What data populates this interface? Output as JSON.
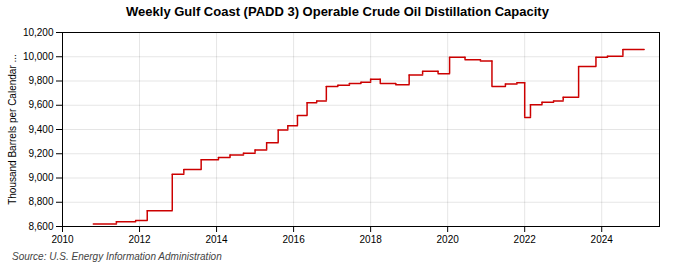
{
  "chart_data": {
    "type": "line",
    "title": "Weekly Gulf Coast (PADD 3) Operable Crude Oil Distillation Capacity",
    "ylabel": "Thousand Barrels per Calendar ...",
    "source": "Source: U.S. Energy Information Administration",
    "color": "#cc0000",
    "grid": true,
    "xlim": [
      2010.0,
      2025.5
    ],
    "xticks": [
      2010,
      2012,
      2014,
      2016,
      2018,
      2020,
      2022,
      2024
    ],
    "ylim": [
      8600,
      10200
    ],
    "yticks": [
      {
        "value": 8600,
        "label": "8,600"
      },
      {
        "value": 8800,
        "label": "8,800"
      },
      {
        "value": 9000,
        "label": "9,000"
      },
      {
        "value": 9200,
        "label": "9,200"
      },
      {
        "value": 9400,
        "label": "9,400"
      },
      {
        "value": 9600,
        "label": "9,600"
      },
      {
        "value": 9800,
        "label": "9,800"
      },
      {
        "value": 10000,
        "label": "10,000"
      },
      {
        "value": 10200,
        "label": "10,200"
      }
    ],
    "segments": [
      {
        "x": [
          2010.8,
          2011.4
        ],
        "y": [
          8620,
          8620
        ]
      },
      {
        "x": [
          2011.4,
          2011.9
        ],
        "y": [
          8640,
          8640
        ]
      },
      {
        "x": [
          2011.9,
          2012.2
        ],
        "y": [
          8650,
          8650
        ]
      },
      {
        "x": [
          2012.2,
          2012.85
        ],
        "y": [
          8730,
          8730
        ]
      },
      {
        "x": [
          2012.85,
          2013.15
        ],
        "y": [
          9030,
          9030
        ]
      },
      {
        "x": [
          2013.15,
          2013.6
        ],
        "y": [
          9070,
          9070
        ]
      },
      {
        "x": [
          2013.6,
          2014.05
        ],
        "y": [
          9150,
          9150
        ]
      },
      {
        "x": [
          2014.05,
          2014.35
        ],
        "y": [
          9170,
          9170
        ]
      },
      {
        "x": [
          2014.35,
          2014.7
        ],
        "y": [
          9190,
          9190
        ]
      },
      {
        "x": [
          2014.7,
          2015.0
        ],
        "y": [
          9205,
          9205
        ]
      },
      {
        "x": [
          2015.0,
          2015.3
        ],
        "y": [
          9230,
          9230
        ]
      },
      {
        "x": [
          2015.3,
          2015.6
        ],
        "y": [
          9290,
          9290
        ]
      },
      {
        "x": [
          2015.6,
          2015.85
        ],
        "y": [
          9395,
          9395
        ]
      },
      {
        "x": [
          2015.85,
          2016.1
        ],
        "y": [
          9430,
          9430
        ]
      },
      {
        "x": [
          2016.1,
          2016.35
        ],
        "y": [
          9515,
          9515
        ]
      },
      {
        "x": [
          2016.35,
          2016.6
        ],
        "y": [
          9620,
          9620
        ]
      },
      {
        "x": [
          2016.6,
          2016.85
        ],
        "y": [
          9635,
          9635
        ]
      },
      {
        "x": [
          2016.85,
          2017.15
        ],
        "y": [
          9755,
          9755
        ]
      },
      {
        "x": [
          2017.15,
          2017.45
        ],
        "y": [
          9765,
          9765
        ]
      },
      {
        "x": [
          2017.45,
          2017.75
        ],
        "y": [
          9780,
          9780
        ]
      },
      {
        "x": [
          2017.75,
          2018.0
        ],
        "y": [
          9790,
          9790
        ]
      },
      {
        "x": [
          2018.0,
          2018.25
        ],
        "y": [
          9815,
          9815
        ]
      },
      {
        "x": [
          2018.25,
          2018.65
        ],
        "y": [
          9780,
          9780
        ]
      },
      {
        "x": [
          2018.65,
          2019.0
        ],
        "y": [
          9770,
          9770
        ]
      },
      {
        "x": [
          2019.0,
          2019.35
        ],
        "y": [
          9850,
          9850
        ]
      },
      {
        "x": [
          2019.35,
          2019.75
        ],
        "y": [
          9880,
          9880
        ]
      },
      {
        "x": [
          2019.75,
          2020.05
        ],
        "y": [
          9860,
          9860
        ]
      },
      {
        "x": [
          2020.05,
          2020.45
        ],
        "y": [
          9995,
          9995
        ]
      },
      {
        "x": [
          2020.45,
          2020.85
        ],
        "y": [
          9975,
          9975
        ]
      },
      {
        "x": [
          2020.85,
          2021.15
        ],
        "y": [
          9965,
          9965
        ]
      },
      {
        "x": [
          2021.15,
          2021.5
        ],
        "y": [
          9755,
          9755
        ]
      },
      {
        "x": [
          2021.5,
          2021.8
        ],
        "y": [
          9775,
          9775
        ]
      },
      {
        "x": [
          2021.8,
          2022.0
        ],
        "y": [
          9785,
          9785
        ]
      },
      {
        "x": [
          2022.0,
          2022.15
        ],
        "y": [
          9500,
          9500
        ]
      },
      {
        "x": [
          2022.15,
          2022.45
        ],
        "y": [
          9605,
          9605
        ]
      },
      {
        "x": [
          2022.45,
          2022.75
        ],
        "y": [
          9625,
          9625
        ]
      },
      {
        "x": [
          2022.75,
          2023.0
        ],
        "y": [
          9635,
          9635
        ]
      },
      {
        "x": [
          2023.0,
          2023.4
        ],
        "y": [
          9665,
          9665
        ]
      },
      {
        "x": [
          2023.4,
          2023.85
        ],
        "y": [
          9920,
          9920
        ]
      },
      {
        "x": [
          2023.85,
          2024.15
        ],
        "y": [
          9995,
          9995
        ]
      },
      {
        "x": [
          2024.15,
          2024.55
        ],
        "y": [
          10005,
          10005
        ]
      },
      {
        "x": [
          2024.55,
          2025.1
        ],
        "y": [
          10060,
          10060
        ]
      }
    ],
    "connectors": [
      {
        "x": 2011.4,
        "y": [
          8620,
          8640
        ]
      },
      {
        "x": 2011.9,
        "y": [
          8640,
          8650
        ]
      },
      {
        "x": 2012.2,
        "y": [
          8650,
          8730
        ]
      },
      {
        "x": 2012.85,
        "y": [
          8730,
          9030
        ]
      },
      {
        "x": 2013.15,
        "y": [
          9030,
          9070
        ]
      },
      {
        "x": 2013.6,
        "y": [
          9070,
          9150
        ]
      },
      {
        "x": 2014.05,
        "y": [
          9150,
          9170
        ]
      },
      {
        "x": 2014.35,
        "y": [
          9170,
          9190
        ]
      },
      {
        "x": 2014.7,
        "y": [
          9190,
          9205
        ]
      },
      {
        "x": 2015.0,
        "y": [
          9205,
          9230
        ]
      },
      {
        "x": 2015.3,
        "y": [
          9230,
          9290
        ]
      },
      {
        "x": 2015.6,
        "y": [
          9290,
          9395
        ]
      },
      {
        "x": 2015.85,
        "y": [
          9395,
          9430
        ]
      },
      {
        "x": 2016.1,
        "y": [
          9430,
          9515
        ]
      },
      {
        "x": 2016.35,
        "y": [
          9515,
          9620
        ]
      },
      {
        "x": 2016.6,
        "y": [
          9620,
          9635
        ]
      },
      {
        "x": 2016.85,
        "y": [
          9635,
          9755
        ]
      },
      {
        "x": 2017.15,
        "y": [
          9755,
          9765
        ]
      },
      {
        "x": 2017.45,
        "y": [
          9765,
          9780
        ]
      },
      {
        "x": 2017.75,
        "y": [
          9780,
          9790
        ]
      },
      {
        "x": 2018.0,
        "y": [
          9790,
          9815
        ]
      },
      {
        "x": 2018.25,
        "y": [
          9815,
          9780
        ]
      },
      {
        "x": 2018.65,
        "y": [
          9780,
          9770
        ]
      },
      {
        "x": 2019.0,
        "y": [
          9770,
          9850
        ]
      },
      {
        "x": 2019.35,
        "y": [
          9850,
          9880
        ]
      },
      {
        "x": 2019.75,
        "y": [
          9880,
          9860
        ]
      },
      {
        "x": 2020.05,
        "y": [
          9860,
          9995
        ]
      },
      {
        "x": 2020.45,
        "y": [
          9995,
          9975
        ]
      },
      {
        "x": 2020.85,
        "y": [
          9975,
          9965
        ]
      },
      {
        "x": 2021.15,
        "y": [
          9965,
          9755
        ]
      },
      {
        "x": 2021.5,
        "y": [
          9755,
          9775
        ]
      },
      {
        "x": 2021.8,
        "y": [
          9775,
          9785
        ]
      },
      {
        "x": 2022.0,
        "y": [
          9785,
          9500
        ]
      },
      {
        "x": 2022.15,
        "y": [
          9500,
          9605
        ]
      },
      {
        "x": 2022.45,
        "y": [
          9605,
          9625
        ]
      },
      {
        "x": 2022.75,
        "y": [
          9625,
          9635
        ]
      },
      {
        "x": 2023.0,
        "y": [
          9635,
          9665
        ]
      },
      {
        "x": 2023.4,
        "y": [
          9665,
          9920
        ]
      },
      {
        "x": 2023.85,
        "y": [
          9920,
          9995
        ]
      },
      {
        "x": 2024.15,
        "y": [
          9995,
          10005
        ]
      },
      {
        "x": 2024.55,
        "y": [
          10005,
          10060
        ]
      }
    ]
  }
}
